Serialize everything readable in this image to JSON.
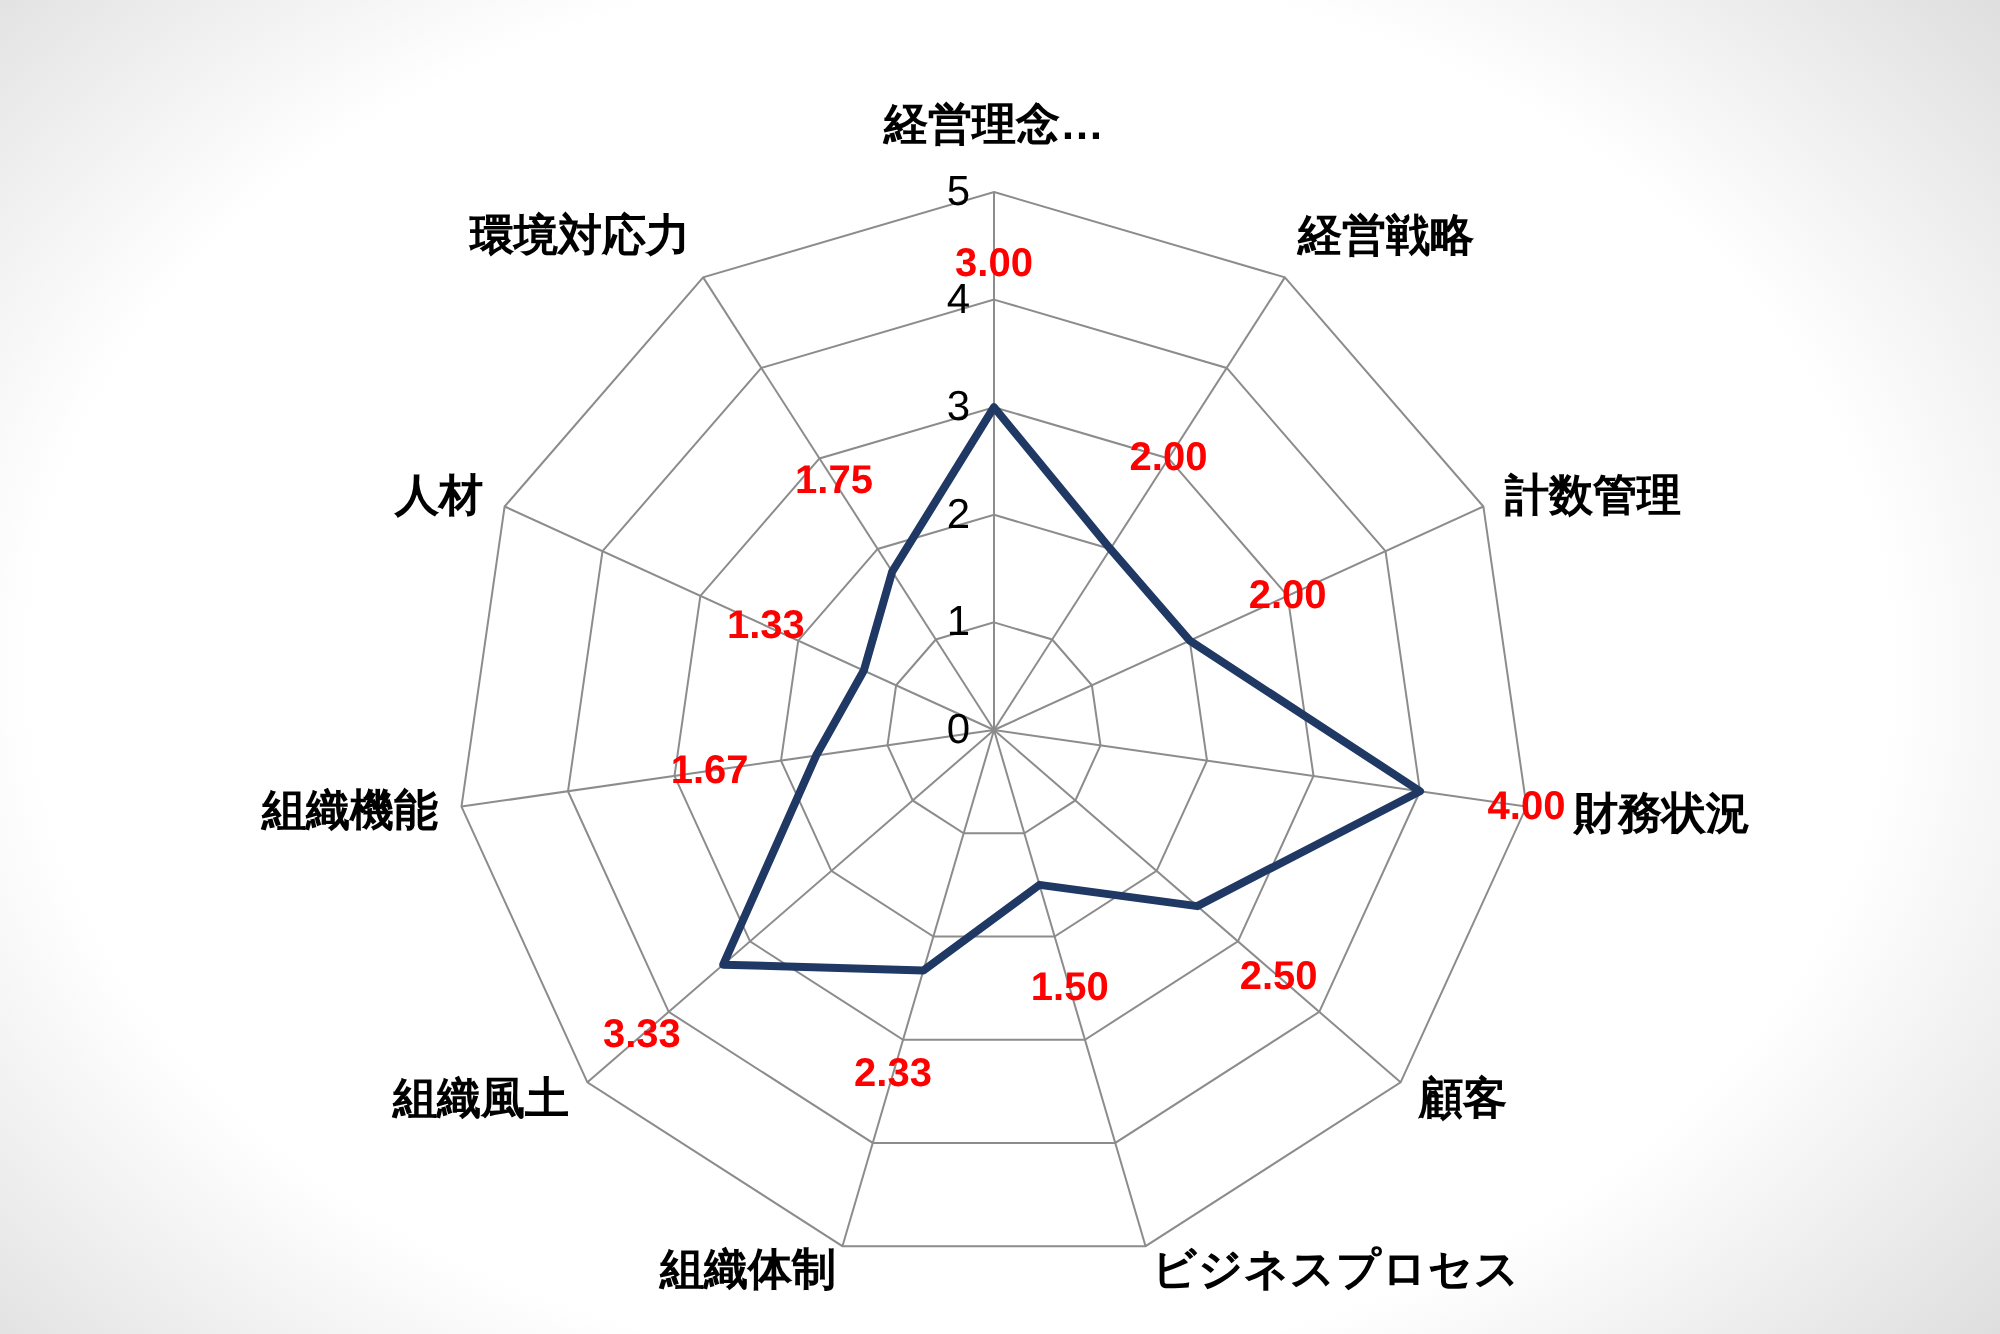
{
  "chart_data": {
    "type": "radar",
    "categories": [
      "経営理念…",
      "経営戦略",
      "計数管理",
      "財務状況",
      "顧客",
      "ビジネスプロセス",
      "組織体制",
      "組織風土",
      "組織機能",
      "人材",
      "環境対応力"
    ],
    "series": [
      {
        "color": "#203864",
        "values": [
          3,
          2,
          2,
          4,
          2.5,
          1.5,
          2.33,
          3.33,
          1.67,
          1.33,
          1.75
        ],
        "value_labels": [
          "3.00",
          "2.00",
          "2.00",
          "4.00",
          "2.50",
          "1.50",
          "2.33",
          "3.33",
          "1.67",
          "1.33",
          "1.75"
        ]
      }
    ],
    "ylim": [
      0,
      5
    ],
    "yticks": [
      0,
      1,
      2,
      3,
      4,
      5
    ],
    "grid": true
  }
}
